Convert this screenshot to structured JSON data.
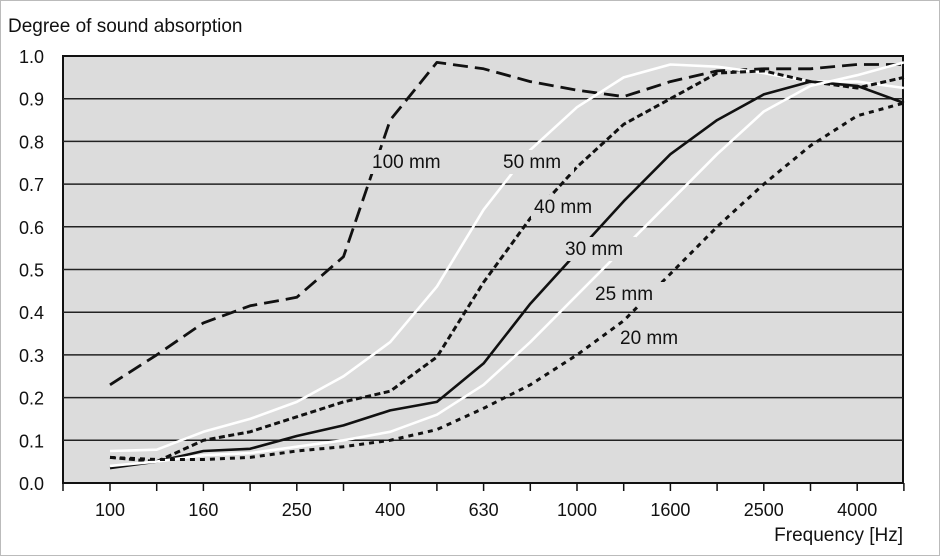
{
  "chart_data": {
    "type": "line",
    "title": "Degree of sound absorption",
    "ylabel": "Degree of sound absorption",
    "xlabel": "Frequency [Hz]",
    "ylim": [
      0,
      1.0
    ],
    "yticks": [
      "0.0",
      "0.1",
      "0.2",
      "0.3",
      "0.4",
      "0.5",
      "0.6",
      "0.7",
      "0.8",
      "0.9",
      "1.0"
    ],
    "x": [
      100,
      125,
      160,
      200,
      250,
      315,
      400,
      500,
      630,
      800,
      1000,
      1250,
      1600,
      2000,
      2500,
      3150,
      4000,
      5000
    ],
    "xtick_labels": [
      "100",
      "160",
      "250",
      "400",
      "630",
      "1000",
      "1600",
      "2500",
      "4000"
    ],
    "grid": "horizontal",
    "background": "#dcdcdc",
    "series": [
      {
        "name": "100 mm",
        "style": "long-dash",
        "color": "#111111",
        "values": [
          0.23,
          0.3,
          0.375,
          0.415,
          0.435,
          0.53,
          0.85,
          0.985,
          0.97,
          0.94,
          0.92,
          0.905,
          0.94,
          0.965,
          0.97,
          0.97,
          0.98,
          0.98
        ]
      },
      {
        "name": "50 mm",
        "style": "solid",
        "color": "#ffffff",
        "values": [
          0.075,
          0.078,
          0.12,
          0.15,
          0.19,
          0.25,
          0.33,
          0.46,
          0.64,
          0.78,
          0.88,
          0.95,
          0.98,
          0.975,
          0.96,
          0.94,
          0.94,
          0.925
        ]
      },
      {
        "name": "40 mm",
        "style": "dash",
        "color": "#111111",
        "values": [
          0.06,
          0.05,
          0.1,
          0.12,
          0.155,
          0.19,
          0.215,
          0.295,
          0.47,
          0.62,
          0.74,
          0.84,
          0.9,
          0.96,
          0.965,
          0.94,
          0.925,
          0.95
        ]
      },
      {
        "name": "30 mm",
        "style": "solid",
        "color": "#111111",
        "values": [
          0.035,
          0.05,
          0.075,
          0.08,
          0.11,
          0.135,
          0.17,
          0.19,
          0.28,
          0.42,
          0.54,
          0.66,
          0.77,
          0.85,
          0.91,
          0.94,
          0.93,
          0.89
        ]
      },
      {
        "name": "25 mm",
        "style": "solid",
        "color": "#ffffff",
        "values": [
          0.04,
          0.05,
          0.065,
          0.07,
          0.085,
          0.1,
          0.12,
          0.16,
          0.23,
          0.33,
          0.44,
          0.55,
          0.66,
          0.77,
          0.87,
          0.93,
          0.955,
          0.985
        ]
      },
      {
        "name": "20 mm",
        "style": "short-dash",
        "color": "#111111",
        "values": [
          0.06,
          0.055,
          0.055,
          0.06,
          0.075,
          0.085,
          0.1,
          0.125,
          0.175,
          0.23,
          0.3,
          0.38,
          0.49,
          0.6,
          0.7,
          0.79,
          0.86,
          0.89
        ]
      }
    ]
  }
}
